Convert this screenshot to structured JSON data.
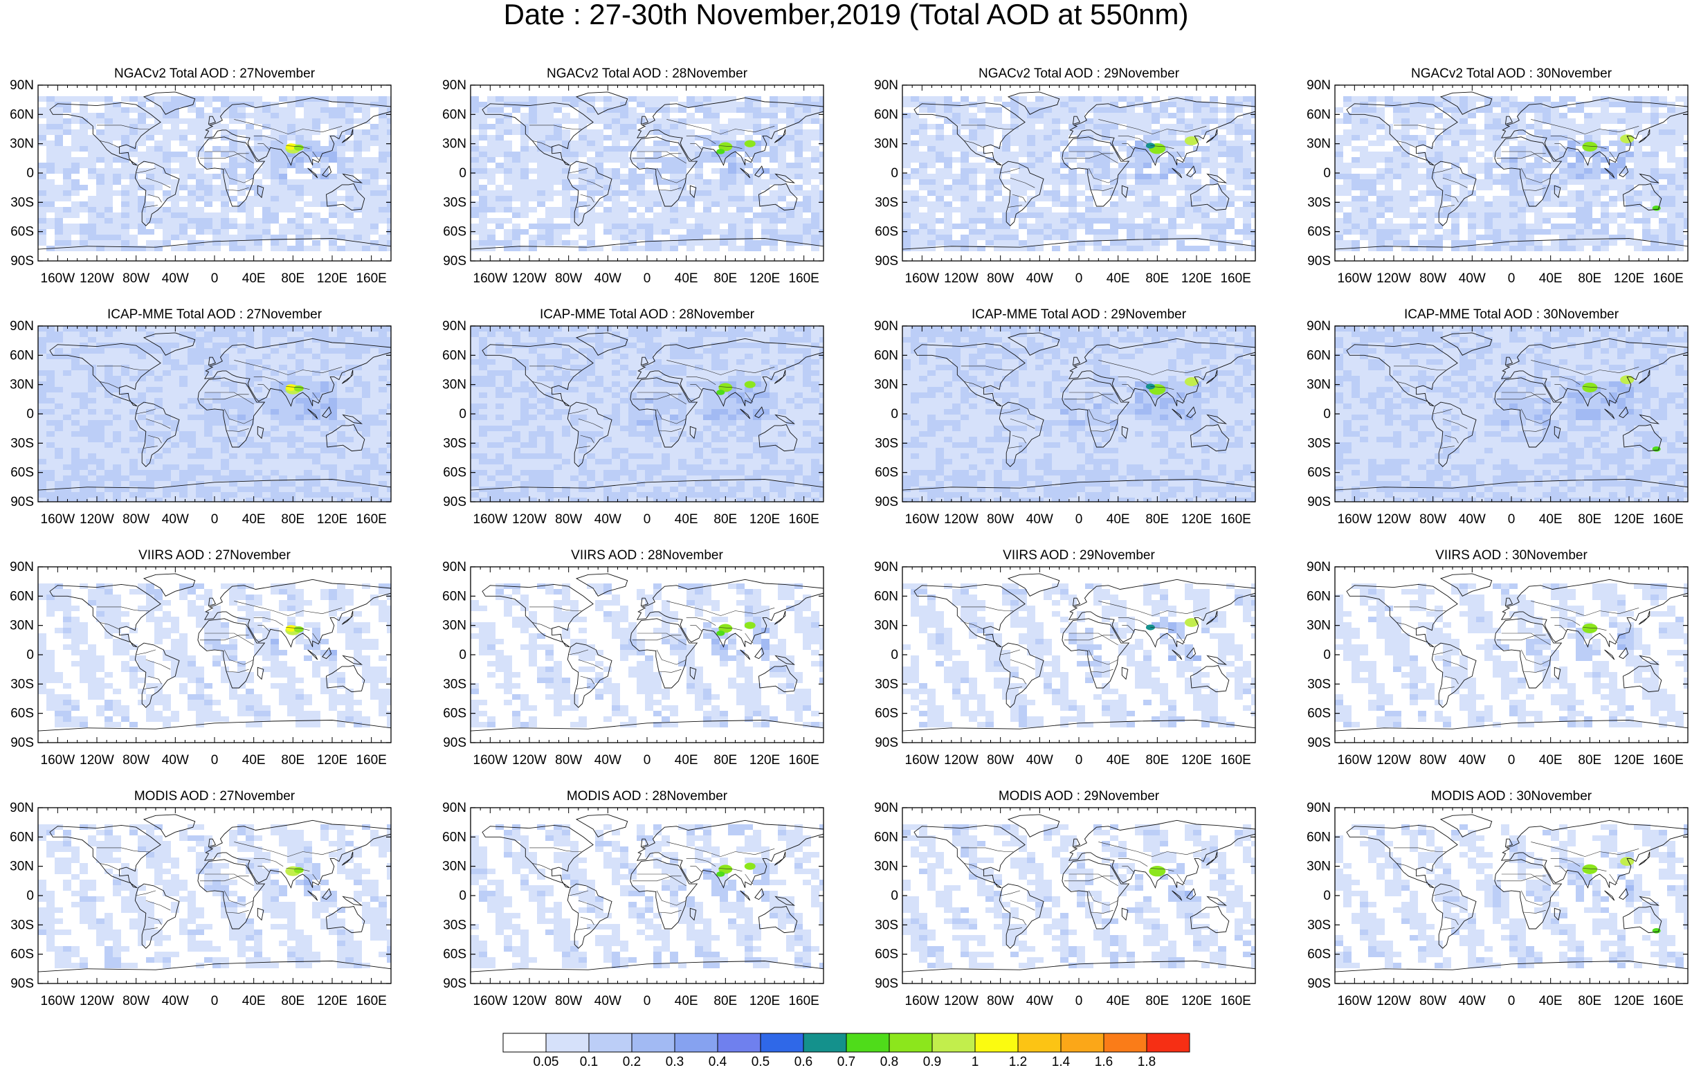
{
  "title": "Date : 27-30th November,2019 (Total AOD at 550nm)",
  "chart_data": {
    "type": "heatmap",
    "layout": "4 rows x 4 columns of global maps",
    "rows": [
      {
        "product": "NGACv2 Total AOD"
      },
      {
        "product": "ICAP-MME Total AOD"
      },
      {
        "product": "VIIRS AOD"
      },
      {
        "product": "MODIS AOD"
      }
    ],
    "panels": [
      {
        "title": "NGACv2 Total AOD : 27November"
      },
      {
        "title": "NGACv2 Total AOD : 28November"
      },
      {
        "title": "NGACv2 Total AOD : 29November"
      },
      {
        "title": "NGACv2 Total AOD : 30November"
      },
      {
        "title": "ICAP-MME Total AOD : 27November"
      },
      {
        "title": "ICAP-MME Total AOD : 28November"
      },
      {
        "title": "ICAP-MME Total AOD : 29November"
      },
      {
        "title": "ICAP-MME Total AOD : 30November"
      },
      {
        "title": "VIIRS AOD : 27November"
      },
      {
        "title": "VIIRS AOD : 28November"
      },
      {
        "title": "VIIRS AOD : 29November"
      },
      {
        "title": "VIIRS AOD : 30November"
      },
      {
        "title": "MODIS AOD : 27November"
      },
      {
        "title": "MODIS AOD : 28November"
      },
      {
        "title": "MODIS AOD : 29November"
      },
      {
        "title": "MODIS AOD : 30November"
      }
    ],
    "y_ticks": [
      "90N",
      "60N",
      "30N",
      "0",
      "30S",
      "60S",
      "90S"
    ],
    "y_values": [
      90,
      60,
      30,
      0,
      -30,
      -60,
      -90
    ],
    "x_ticks": [
      "160W",
      "120W",
      "80W",
      "40W",
      "0",
      "40E",
      "80E",
      "120E",
      "160E"
    ],
    "x_values": [
      -160,
      -120,
      -80,
      -40,
      0,
      40,
      80,
      120,
      160
    ],
    "xlim": [
      -180,
      180
    ],
    "ylim": [
      -90,
      90
    ],
    "colorbar": {
      "labels": [
        "0.05",
        "0.1",
        "0.2",
        "0.3",
        "0.4",
        "0.5",
        "0.6",
        "0.7",
        "0.8",
        "0.9",
        "1",
        "1.2",
        "1.4",
        "1.6",
        "1.8"
      ],
      "colors": [
        "#ffffff",
        "#d6e1fa",
        "#bccef7",
        "#a2baf3",
        "#86a2f0",
        "#6f80ee",
        "#2f68e8",
        "#14918c",
        "#4fdc1a",
        "#8ce61c",
        "#c2ee4c",
        "#fbfb10",
        "#fcc414",
        "#fba718",
        "#fa7c18",
        "#f62f14"
      ]
    }
  }
}
